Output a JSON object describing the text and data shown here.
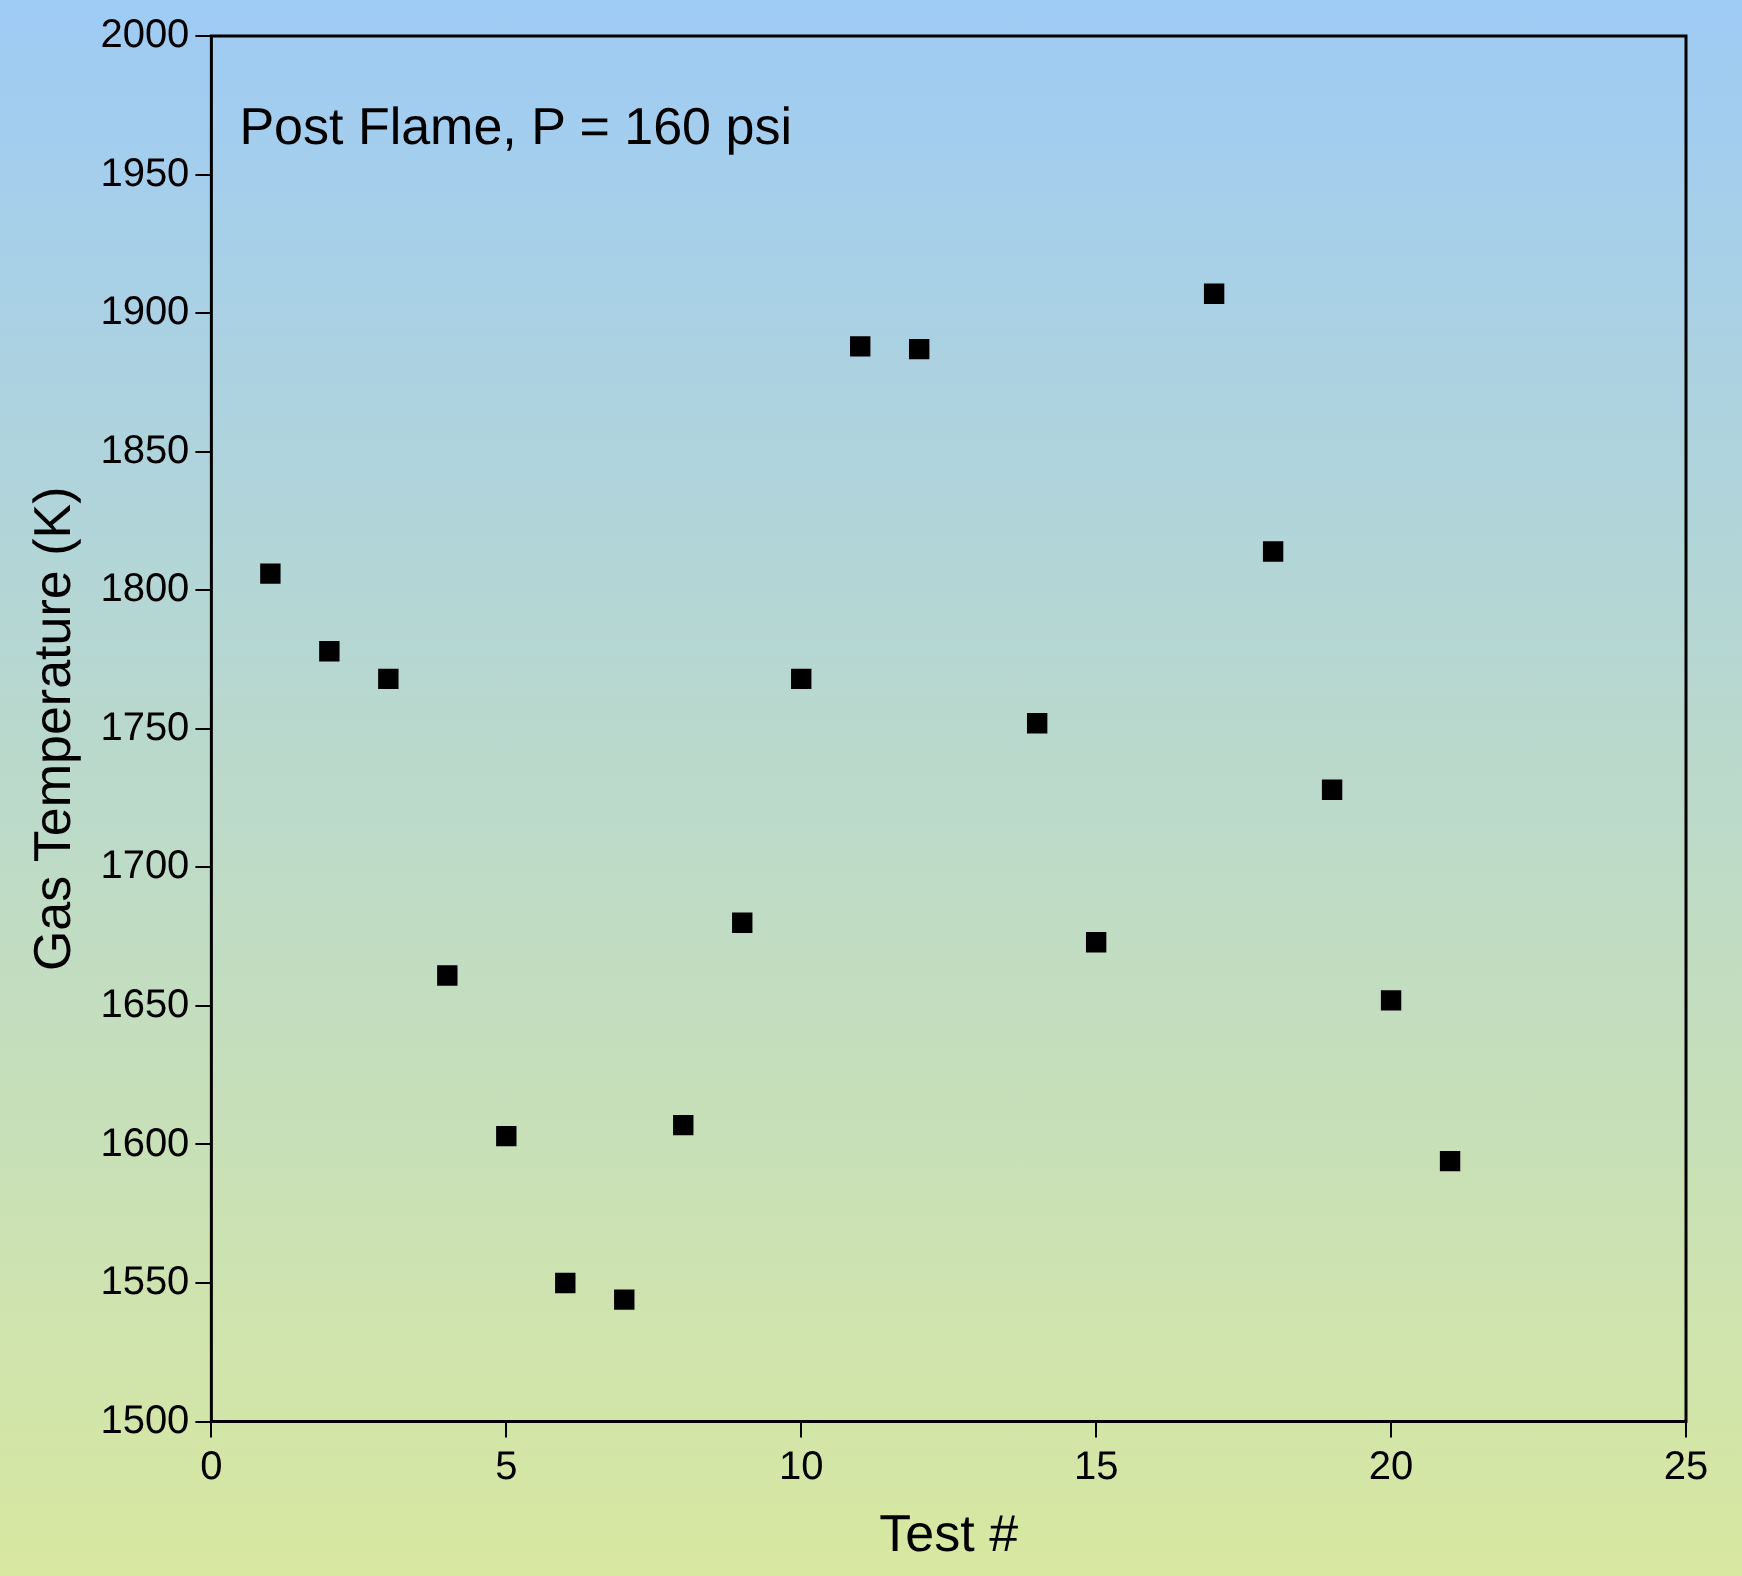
{
  "chart_data": {
    "type": "scatter",
    "xlabel": "Test #",
    "ylabel": "Gas Temperature (K)",
    "x": [
      1,
      2,
      3,
      4,
      5,
      6,
      7,
      8,
      9,
      10,
      11,
      12,
      14,
      15,
      17,
      18,
      19,
      20,
      21
    ],
    "values": [
      1806,
      1778,
      1768,
      1661,
      1603,
      1550,
      1544,
      1607,
      1680,
      1768,
      1888,
      1887,
      1752,
      1673,
      1907,
      1814,
      1728,
      1652,
      1594
    ],
    "color": "#000000",
    "marker": "square",
    "xlim": [
      0,
      25
    ],
    "xticks": [
      0,
      5,
      10,
      15,
      20,
      25
    ],
    "ylim": [
      1500,
      2000
    ],
    "yticks": [
      1500,
      1550,
      1600,
      1650,
      1700,
      1750,
      1800,
      1850,
      1900,
      1950,
      2000
    ],
    "annotations": [
      "Post Flame, P = 160 psi"
    ],
    "grid": false,
    "legend": false
  }
}
